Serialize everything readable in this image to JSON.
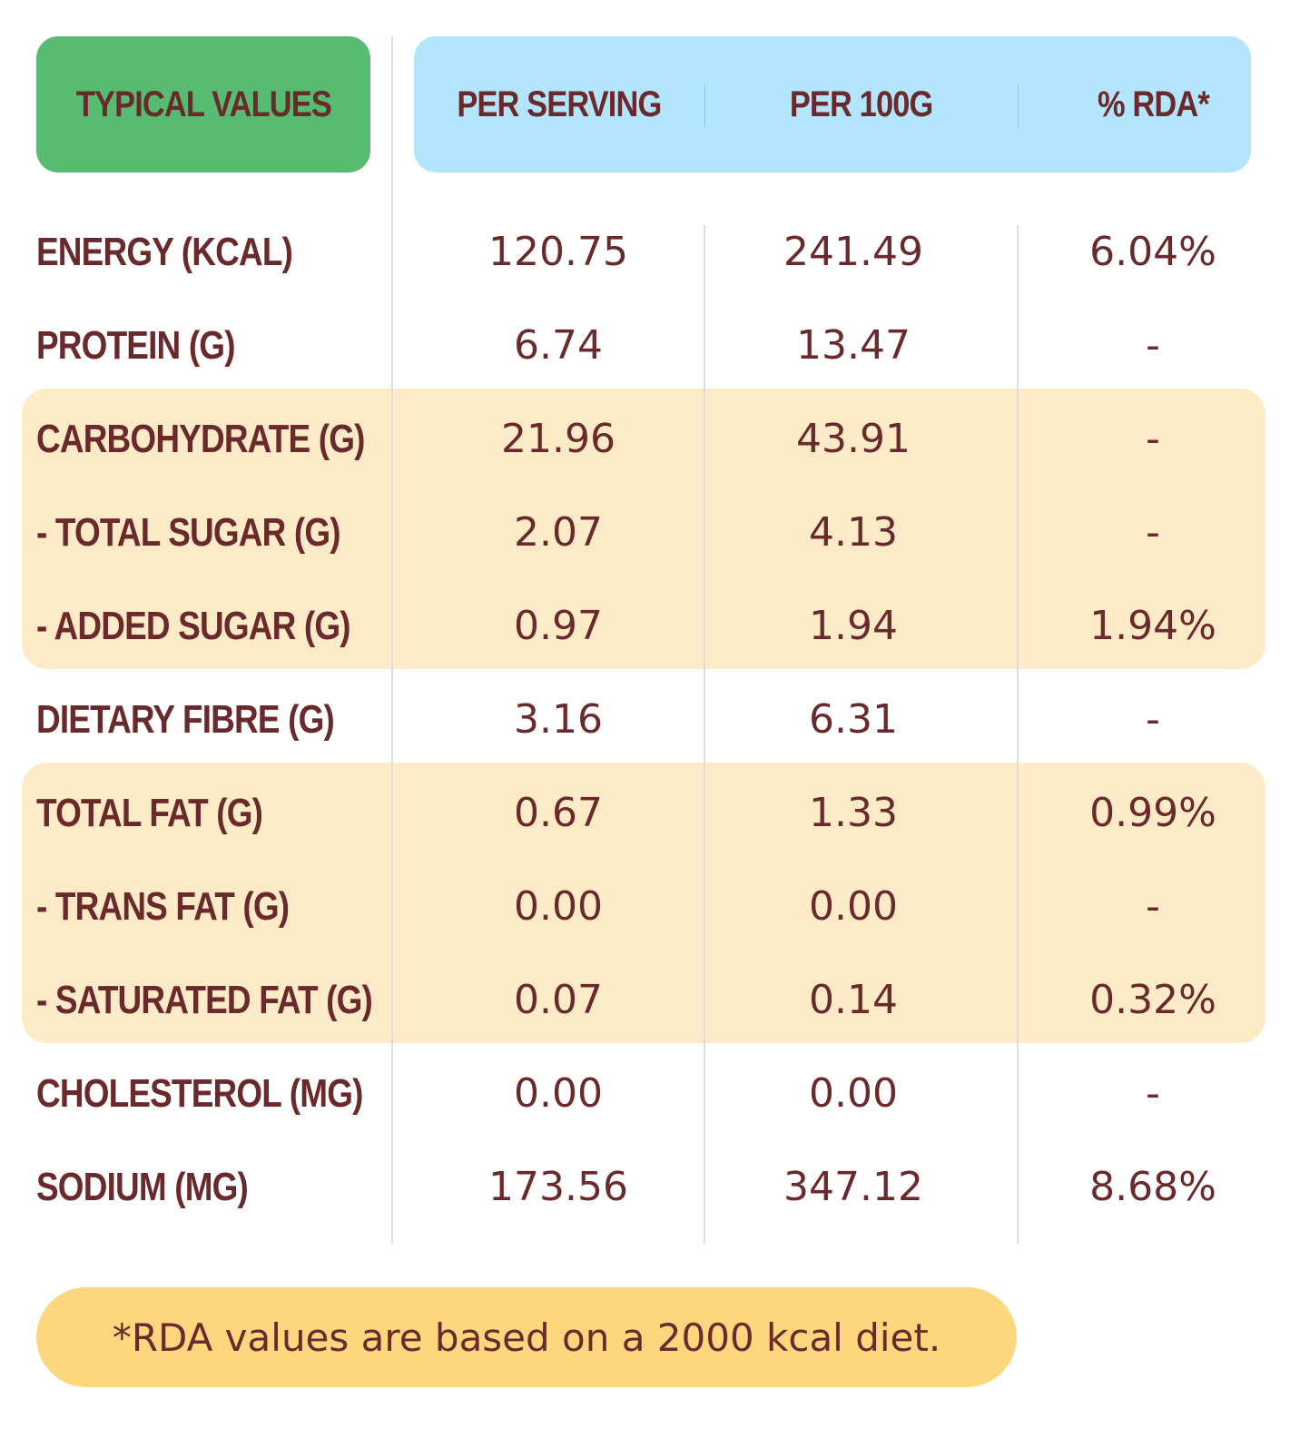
{
  "header": {
    "typical_values": "TYPICAL VALUES",
    "per_serving": "PER SERVING",
    "per_100g": "PER 100G",
    "rda": "% RDA*"
  },
  "rows": [
    {
      "label": "ENERGY (KCAL)",
      "per_serving": "120.75",
      "per_100g": "241.49",
      "rda": "6.04%"
    },
    {
      "label": "PROTEIN (G)",
      "per_serving": "6.74",
      "per_100g": "13.47",
      "rda": "-"
    },
    {
      "label": "CARBOHYDRATE (G)",
      "per_serving": "21.96",
      "per_100g": "43.91",
      "rda": "-"
    },
    {
      "label": "- TOTAL SUGAR (G)",
      "per_serving": "2.07",
      "per_100g": "4.13",
      "rda": "-"
    },
    {
      "label": "- ADDED SUGAR (G)",
      "per_serving": "0.97",
      "per_100g": "1.94",
      "rda": "1.94%"
    },
    {
      "label": "DIETARY FIBRE (G)",
      "per_serving": "3.16",
      "per_100g": "6.31",
      "rda": "-"
    },
    {
      "label": "TOTAL FAT (G)",
      "per_serving": "0.67",
      "per_100g": "1.33",
      "rda": "0.99%"
    },
    {
      "label": "- TRANS FAT (G)",
      "per_serving": "0.00",
      "per_100g": "0.00",
      "rda": "-"
    },
    {
      "label": "- SATURATED FAT (G)",
      "per_serving": "0.07",
      "per_100g": "0.14",
      "rda": "0.32%"
    },
    {
      "label": "CHOLESTEROL (MG)",
      "per_serving": "0.00",
      "per_100g": "0.00",
      "rda": "-"
    },
    {
      "label": "SODIUM (MG)",
      "per_serving": "173.56",
      "per_100g": "347.12",
      "rda": "8.68%"
    }
  ],
  "footnote": "*RDA values are based on a 2000 kcal diet.",
  "colors": {
    "text": "#6a2a2c",
    "typical_header_bg": "#58bb72",
    "values_header_bg": "#b3e5fc",
    "highlight_band": "#fdebc8",
    "footnote_bg": "#fdd77e"
  }
}
